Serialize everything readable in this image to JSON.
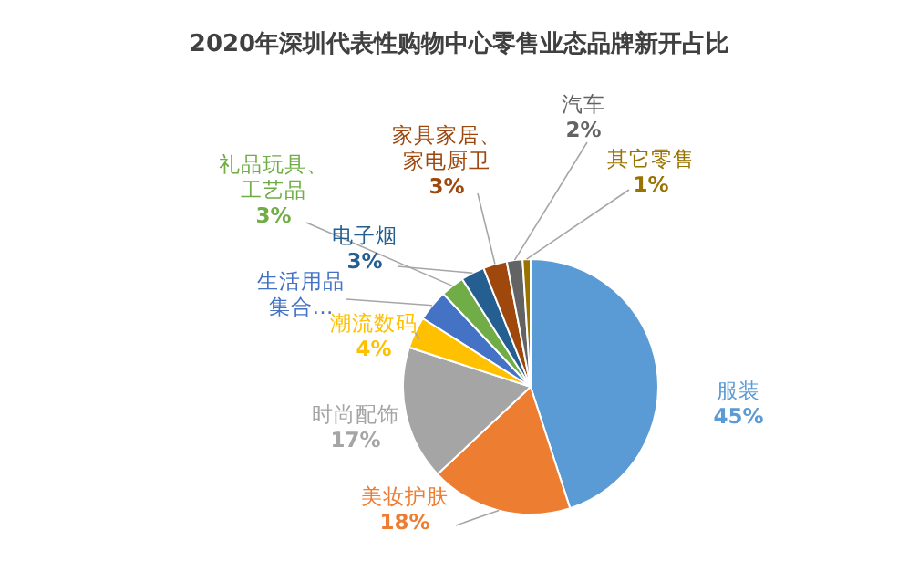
{
  "chart_data": {
    "type": "pie",
    "title": "2020年深圳代表性购物中心零售业态品牌新开占比",
    "categories": [
      "服装",
      "美妆护肤",
      "时尚配饰",
      "潮流数码",
      "生活用品集合…",
      "礼品玩具、工艺品",
      "电子烟",
      "家具家居、家电厨卫",
      "汽车",
      "其它零售"
    ],
    "values": [
      45,
      18,
      17,
      4,
      4,
      3,
      3,
      3,
      2,
      1
    ],
    "value_labels": [
      "45%",
      "18%",
      "17%",
      "4%",
      null,
      "3%",
      "3%",
      "3%",
      "2%",
      "1%"
    ],
    "colors": [
      "#5b9bd5",
      "#ed7d31",
      "#a5a5a5",
      "#ffc000",
      "#4472c4",
      "#70ad47",
      "#255e91",
      "#9e480e",
      "#636363",
      "#997300"
    ]
  }
}
